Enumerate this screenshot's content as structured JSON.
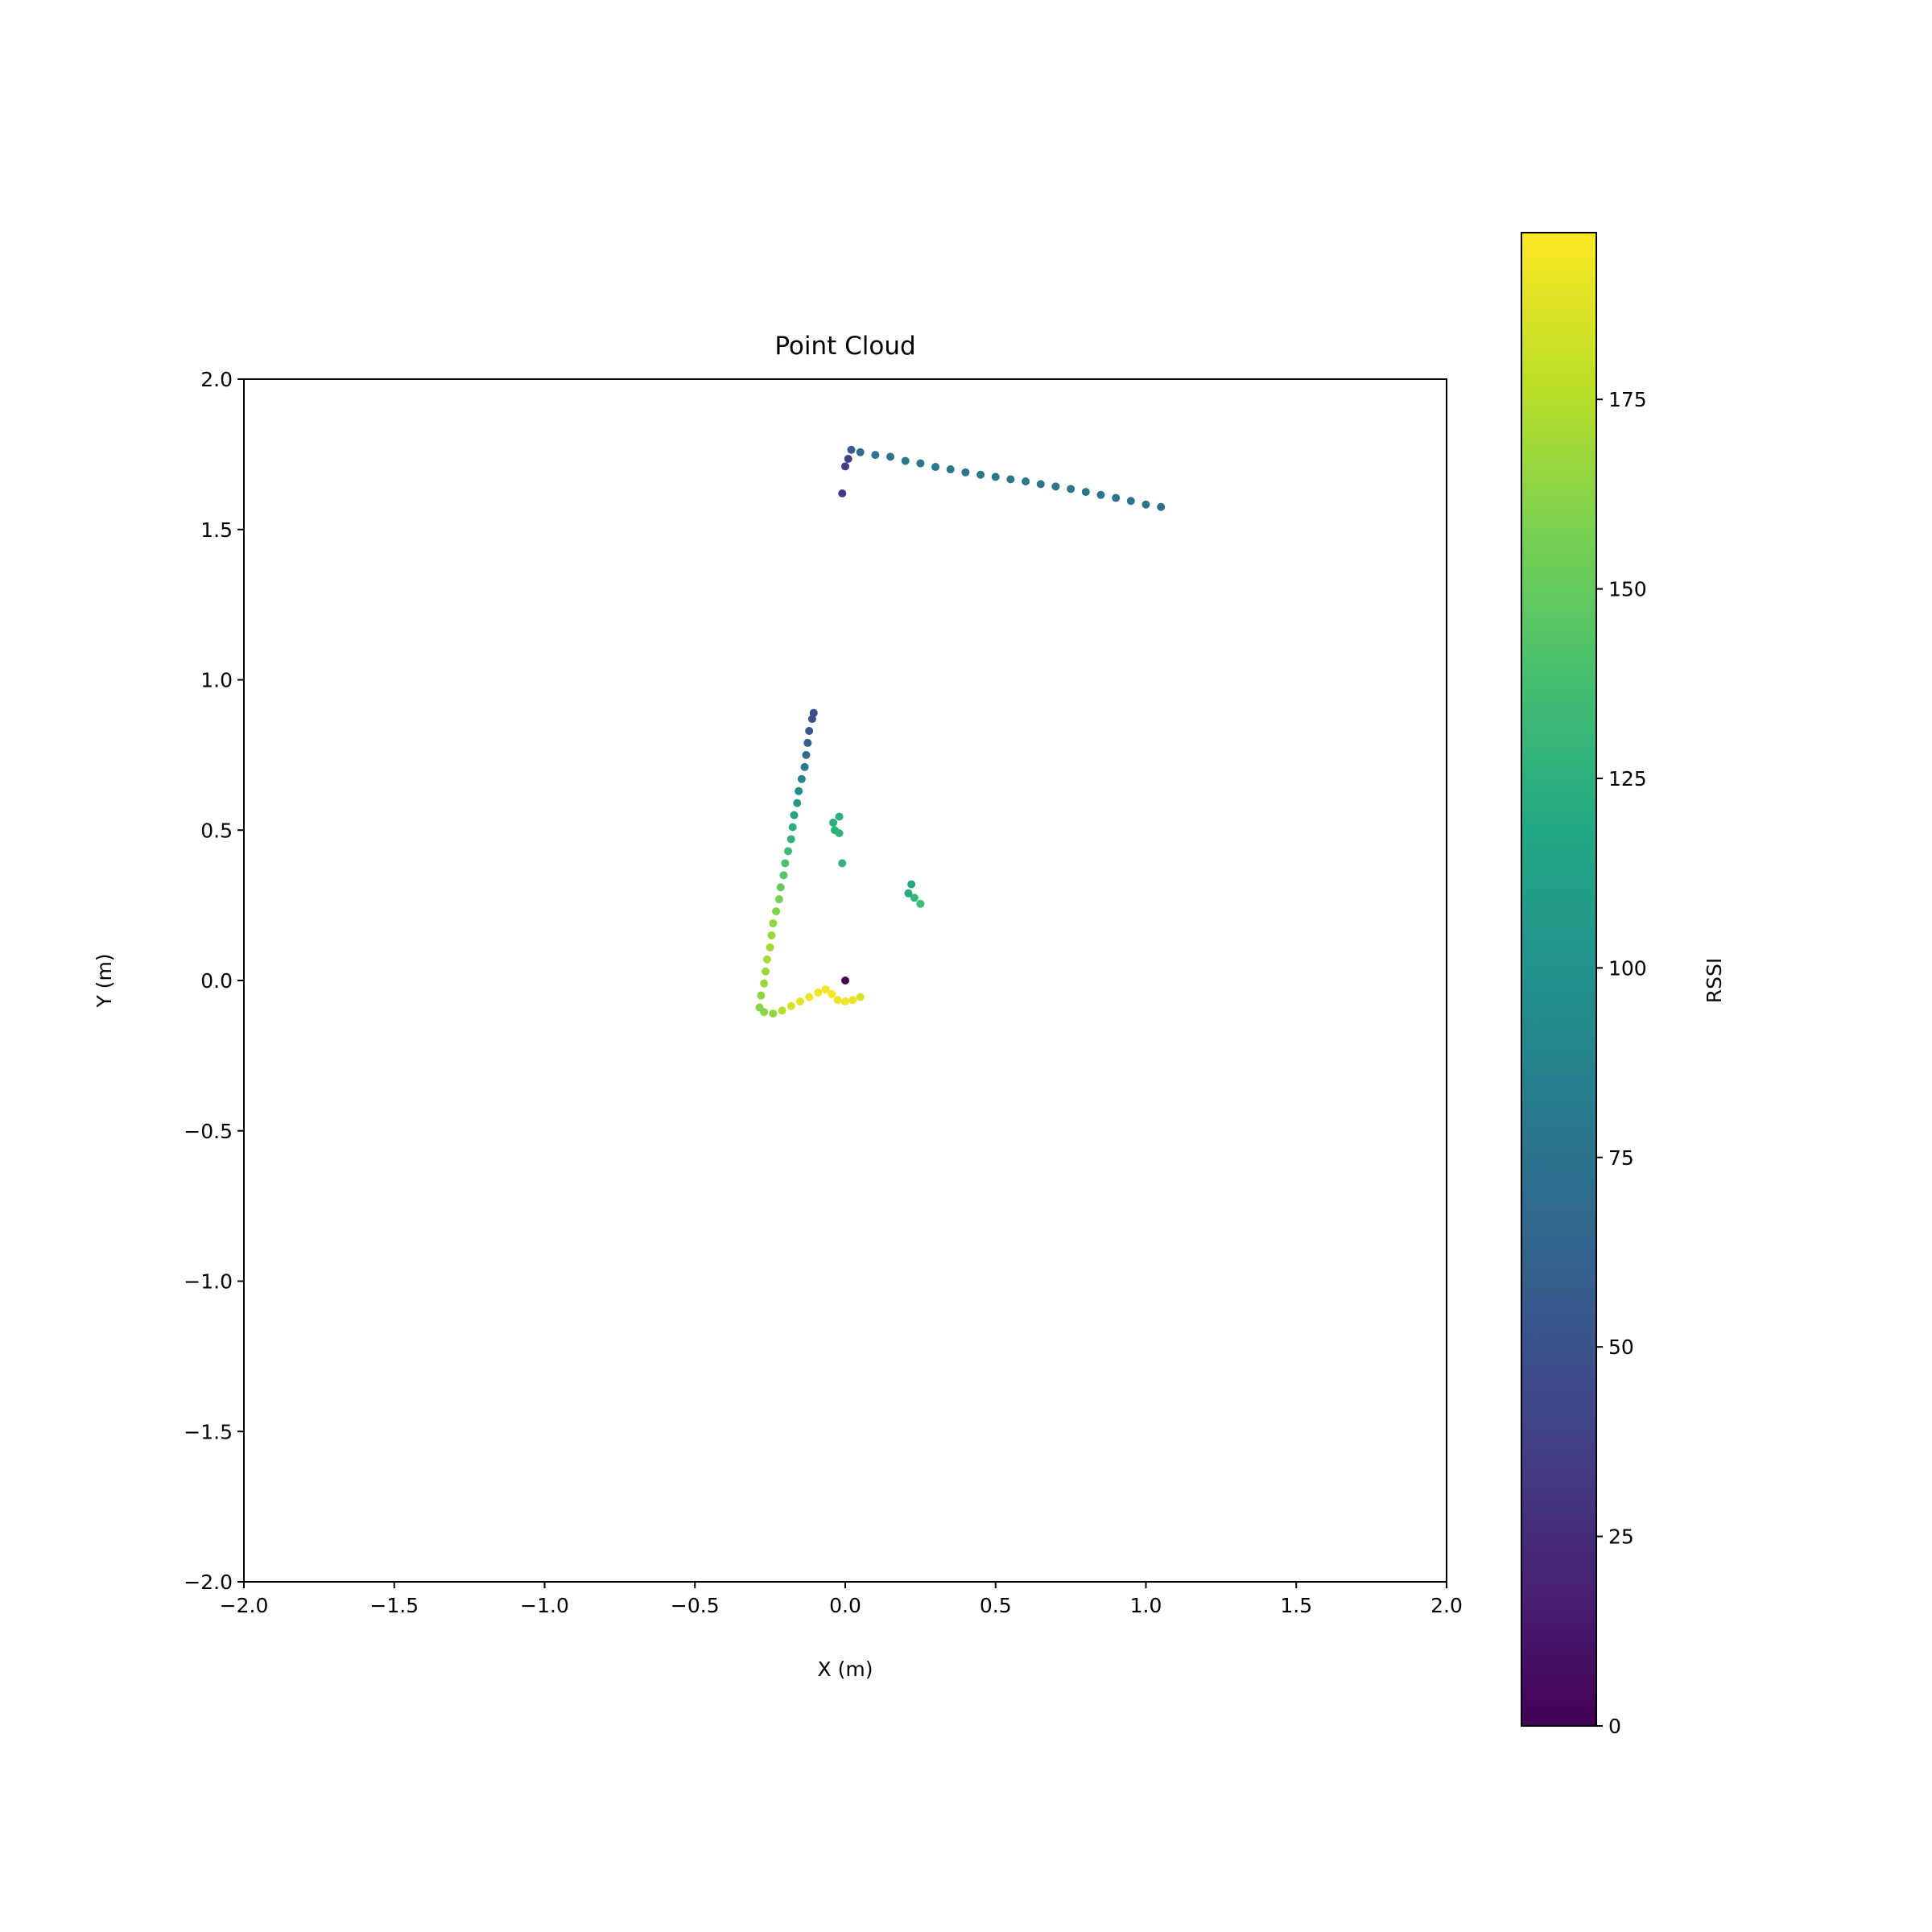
{
  "chart_data": {
    "type": "scatter",
    "title": "Point Cloud",
    "xlabel": "X (m)",
    "ylabel": "Y (m)",
    "xlim": [
      -2.0,
      2.0
    ],
    "ylim": [
      -2.0,
      2.0
    ],
    "x_ticks": [
      "−2.0",
      "−1.5",
      "−1.0",
      "−0.5",
      "0.0",
      "0.5",
      "1.0",
      "1.5",
      "2.0"
    ],
    "y_ticks": [
      "−2.0",
      "−1.5",
      "−1.0",
      "−0.5",
      "0.0",
      "0.5",
      "1.0",
      "1.5",
      "2.0"
    ],
    "grid": false,
    "colormap": "viridis",
    "colorbar": {
      "label": "RSSI",
      "range": [
        0,
        197
      ],
      "ticks": [
        "0",
        "25",
        "50",
        "75",
        "100",
        "125",
        "150",
        "175"
      ],
      "placement": "right"
    },
    "points": [
      [
        -0.01,
        1.62,
        33
      ],
      [
        0.0,
        1.71,
        35
      ],
      [
        0.01,
        1.735,
        37
      ],
      [
        0.02,
        1.765,
        55
      ],
      [
        0.05,
        1.757,
        72
      ],
      [
        0.1,
        1.748,
        75
      ],
      [
        0.15,
        1.742,
        76
      ],
      [
        0.2,
        1.728,
        77
      ],
      [
        0.25,
        1.72,
        77
      ],
      [
        0.3,
        1.708,
        78
      ],
      [
        0.35,
        1.7,
        78
      ],
      [
        0.4,
        1.69,
        78
      ],
      [
        0.45,
        1.682,
        78
      ],
      [
        0.5,
        1.675,
        78
      ],
      [
        0.55,
        1.667,
        78
      ],
      [
        0.6,
        1.66,
        78
      ],
      [
        0.65,
        1.651,
        78
      ],
      [
        0.7,
        1.643,
        78
      ],
      [
        0.75,
        1.635,
        78
      ],
      [
        0.8,
        1.625,
        77
      ],
      [
        0.85,
        1.615,
        77
      ],
      [
        0.9,
        1.605,
        76
      ],
      [
        0.95,
        1.595,
        76
      ],
      [
        1.0,
        1.583,
        75
      ],
      [
        1.05,
        1.575,
        70
      ],
      [
        -0.105,
        0.89,
        45
      ],
      [
        -0.11,
        0.87,
        48
      ],
      [
        -0.12,
        0.83,
        55
      ],
      [
        -0.125,
        0.79,
        62
      ],
      [
        -0.13,
        0.75,
        68
      ],
      [
        -0.135,
        0.71,
        78
      ],
      [
        -0.145,
        0.67,
        88
      ],
      [
        -0.155,
        0.63,
        98
      ],
      [
        -0.16,
        0.59,
        106
      ],
      [
        -0.17,
        0.55,
        115
      ],
      [
        -0.175,
        0.51,
        122
      ],
      [
        -0.18,
        0.47,
        128
      ],
      [
        -0.19,
        0.43,
        135
      ],
      [
        -0.2,
        0.39,
        140
      ],
      [
        -0.205,
        0.35,
        145
      ],
      [
        -0.215,
        0.31,
        150
      ],
      [
        -0.22,
        0.27,
        155
      ],
      [
        -0.23,
        0.23,
        160
      ],
      [
        -0.24,
        0.19,
        165
      ],
      [
        -0.245,
        0.15,
        168
      ],
      [
        -0.25,
        0.11,
        170
      ],
      [
        -0.26,
        0.07,
        170
      ],
      [
        -0.265,
        0.03,
        168
      ],
      [
        -0.27,
        -0.01,
        166
      ],
      [
        -0.28,
        -0.05,
        164
      ],
      [
        -0.285,
        -0.09,
        162
      ],
      [
        -0.27,
        -0.105,
        162
      ],
      [
        -0.24,
        -0.11,
        165
      ],
      [
        -0.21,
        -0.1,
        175
      ],
      [
        -0.18,
        -0.085,
        185
      ],
      [
        -0.15,
        -0.07,
        190
      ],
      [
        -0.12,
        -0.055,
        192
      ],
      [
        -0.09,
        -0.04,
        193
      ],
      [
        -0.065,
        -0.03,
        194
      ],
      [
        -0.045,
        -0.045,
        194
      ],
      [
        -0.025,
        -0.065,
        193
      ],
      [
        0.0,
        -0.07,
        192
      ],
      [
        0.025,
        -0.065,
        190
      ],
      [
        0.05,
        -0.055,
        185
      ],
      [
        0.0,
        0.0,
        0
      ],
      [
        -0.02,
        0.545,
        125
      ],
      [
        -0.04,
        0.525,
        124
      ],
      [
        -0.035,
        0.5,
        126
      ],
      [
        -0.02,
        0.49,
        127
      ],
      [
        -0.01,
        0.39,
        128
      ],
      [
        0.22,
        0.32,
        115
      ],
      [
        0.21,
        0.29,
        120
      ],
      [
        0.23,
        0.275,
        130
      ],
      [
        0.25,
        0.255,
        135
      ]
    ]
  }
}
